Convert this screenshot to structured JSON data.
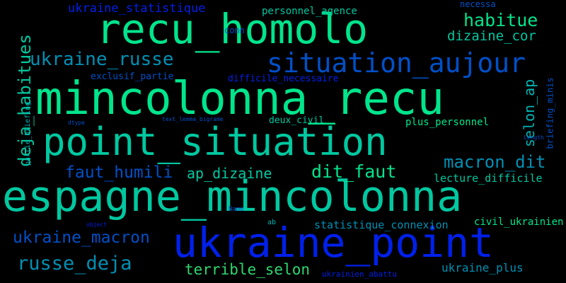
{
  "words": [
    {
      "text": "recu_homolo"
    },
    {
      "text": "mincolonna_recu"
    },
    {
      "text": "espagne_mincolonna"
    },
    {
      "text": "point_situation"
    },
    {
      "text": "ukraine_point"
    },
    {
      "text": "situation_aujour"
    },
    {
      "text": "habitue"
    },
    {
      "text": "ukraine_russe"
    },
    {
      "text": "ukraine_statistique"
    },
    {
      "text": "personnel_agence"
    },
    {
      "text": "necessa"
    },
    {
      "text": "dizaine_cor"
    },
    {
      "text": "conn"
    },
    {
      "text": "deja_habitues"
    },
    {
      "text": "exclusif_partie"
    },
    {
      "text": "difficile_necessaire"
    },
    {
      "text": "selon_ap"
    },
    {
      "text": "briefing_minis"
    },
    {
      "text": "partie_briefing"
    },
    {
      "text": "dtype"
    },
    {
      "text": "text_lemma_bigrame"
    },
    {
      "text": "deux_civil"
    },
    {
      "text": "plus_personnel"
    },
    {
      "text": "Length"
    },
    {
      "text": "macron_dit"
    },
    {
      "text": "faut_humili"
    },
    {
      "text": "ap_dizaine"
    },
    {
      "text": "dit_faut"
    },
    {
      "text": "lecture_difficile"
    },
    {
      "text": "Name"
    },
    {
      "text": "object"
    },
    {
      "text": "ab"
    },
    {
      "text": "statistique_connexion"
    },
    {
      "text": "civil_ukrainien"
    },
    {
      "text": "ukraine_macron"
    },
    {
      "text": "russe_deja"
    },
    {
      "text": "terrible_selon"
    },
    {
      "text": "ukrainien_abattu"
    },
    {
      "text": "ukraine_plus"
    }
  ],
  "colors": {
    "background": "#000000",
    "palette": [
      "#00e58c",
      "#00c8a0",
      "#0090b4",
      "#0050c8",
      "#0020ea",
      "#2ed870",
      "#00b4b4"
    ]
  }
}
